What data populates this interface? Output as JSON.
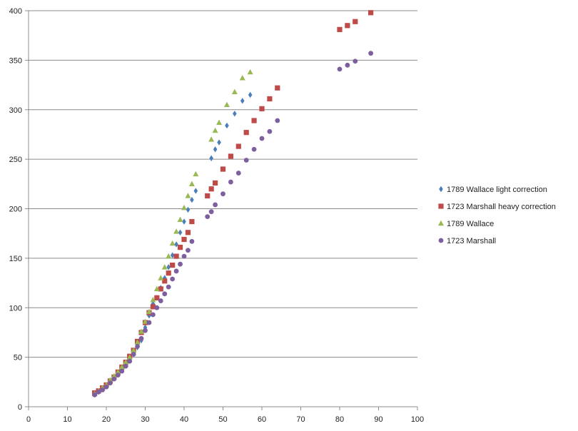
{
  "chart_data": {
    "type": "scatter",
    "title": "",
    "xlabel": "",
    "ylabel": "",
    "xlim": [
      0,
      100
    ],
    "ylim": [
      0,
      400
    ],
    "xticks": [
      0,
      10,
      20,
      30,
      40,
      50,
      60,
      70,
      80,
      90,
      100
    ],
    "yticks": [
      0,
      50,
      100,
      150,
      200,
      250,
      300,
      350,
      400
    ],
    "grid": "horizontal",
    "legend_position": "right",
    "series": [
      {
        "name": "1789 Wallace light correction",
        "color": "#4a7ebb",
        "marker": "diamond",
        "points": [
          [
            17,
            13
          ],
          [
            18,
            15
          ],
          [
            19,
            18
          ],
          [
            20,
            21
          ],
          [
            21,
            25
          ],
          [
            22,
            29
          ],
          [
            23,
            33
          ],
          [
            24,
            37
          ],
          [
            25,
            42
          ],
          [
            26,
            47
          ],
          [
            27,
            53
          ],
          [
            28,
            60
          ],
          [
            29,
            67
          ],
          [
            30,
            80
          ],
          [
            31,
            92
          ],
          [
            32,
            104
          ],
          [
            33,
            110
          ],
          [
            34,
            120
          ],
          [
            35,
            130
          ],
          [
            36,
            141
          ],
          [
            37,
            153
          ],
          [
            38,
            164
          ],
          [
            39,
            176
          ],
          [
            40,
            187
          ],
          [
            41,
            199
          ],
          [
            42,
            209
          ],
          [
            43,
            218
          ],
          [
            47,
            251
          ],
          [
            48,
            260
          ],
          [
            49,
            267
          ],
          [
            51,
            284
          ],
          [
            53,
            296
          ],
          [
            55,
            309
          ],
          [
            57,
            315
          ]
        ]
      },
      {
        "name": "1723 Marshall heavy correction",
        "color": "#be4b48",
        "marker": "square",
        "points": [
          [
            17,
            14
          ],
          [
            18,
            16
          ],
          [
            19,
            19
          ],
          [
            20,
            22
          ],
          [
            21,
            26
          ],
          [
            22,
            30
          ],
          [
            23,
            35
          ],
          [
            24,
            40
          ],
          [
            25,
            45
          ],
          [
            26,
            51
          ],
          [
            27,
            57
          ],
          [
            28,
            66
          ],
          [
            29,
            75
          ],
          [
            30,
            85
          ],
          [
            31,
            95
          ],
          [
            32,
            101
          ],
          [
            33,
            110
          ],
          [
            34,
            119
          ],
          [
            35,
            127
          ],
          [
            36,
            135
          ],
          [
            37,
            143
          ],
          [
            38,
            152
          ],
          [
            39,
            161
          ],
          [
            40,
            169
          ],
          [
            41,
            176
          ],
          [
            42,
            187
          ],
          [
            46,
            213
          ],
          [
            47,
            220
          ],
          [
            48,
            226
          ],
          [
            50,
            240
          ],
          [
            52,
            253
          ],
          [
            54,
            263
          ],
          [
            56,
            277
          ],
          [
            58,
            289
          ],
          [
            60,
            301
          ],
          [
            62,
            311
          ],
          [
            64,
            322
          ],
          [
            80,
            381
          ],
          [
            82,
            385
          ],
          [
            84,
            389
          ],
          [
            88,
            398
          ]
        ]
      },
      {
        "name": "1789 Wallace",
        "color": "#98b954",
        "marker": "triangle",
        "points": [
          [
            17,
            13
          ],
          [
            18,
            16
          ],
          [
            19,
            19
          ],
          [
            20,
            22
          ],
          [
            21,
            27
          ],
          [
            22,
            31
          ],
          [
            23,
            35
          ],
          [
            24,
            40
          ],
          [
            25,
            45
          ],
          [
            26,
            50
          ],
          [
            27,
            57
          ],
          [
            28,
            65
          ],
          [
            29,
            76
          ],
          [
            30,
            86
          ],
          [
            31,
            96
          ],
          [
            32,
            108
          ],
          [
            33,
            119
          ],
          [
            34,
            130
          ],
          [
            35,
            141
          ],
          [
            36,
            152
          ],
          [
            37,
            165
          ],
          [
            38,
            177
          ],
          [
            39,
            189
          ],
          [
            40,
            201
          ],
          [
            41,
            213
          ],
          [
            42,
            225
          ],
          [
            43,
            235
          ],
          [
            47,
            270
          ],
          [
            48,
            279
          ],
          [
            49,
            287
          ],
          [
            51,
            305
          ],
          [
            53,
            318
          ],
          [
            55,
            332
          ],
          [
            57,
            338
          ]
        ]
      },
      {
        "name": "1723 Marshall",
        "color": "#7d5fa0",
        "marker": "circle",
        "points": [
          [
            17,
            12
          ],
          [
            18,
            15
          ],
          [
            19,
            17
          ],
          [
            20,
            20
          ],
          [
            21,
            24
          ],
          [
            22,
            28
          ],
          [
            23,
            32
          ],
          [
            24,
            36
          ],
          [
            25,
            41
          ],
          [
            26,
            46
          ],
          [
            27,
            53
          ],
          [
            28,
            61
          ],
          [
            29,
            69
          ],
          [
            30,
            77
          ],
          [
            31,
            85
          ],
          [
            32,
            93
          ],
          [
            33,
            100
          ],
          [
            34,
            107
          ],
          [
            35,
            114
          ],
          [
            36,
            121
          ],
          [
            37,
            129
          ],
          [
            38,
            137
          ],
          [
            39,
            144
          ],
          [
            40,
            152
          ],
          [
            41,
            158
          ],
          [
            42,
            167
          ],
          [
            46,
            192
          ],
          [
            47,
            197
          ],
          [
            48,
            204
          ],
          [
            50,
            215
          ],
          [
            52,
            227
          ],
          [
            54,
            236
          ],
          [
            56,
            249
          ],
          [
            58,
            260
          ],
          [
            60,
            271
          ],
          [
            62,
            278
          ],
          [
            64,
            289
          ],
          [
            80,
            341
          ],
          [
            82,
            345
          ],
          [
            84,
            349
          ],
          [
            88,
            357
          ]
        ]
      }
    ]
  }
}
